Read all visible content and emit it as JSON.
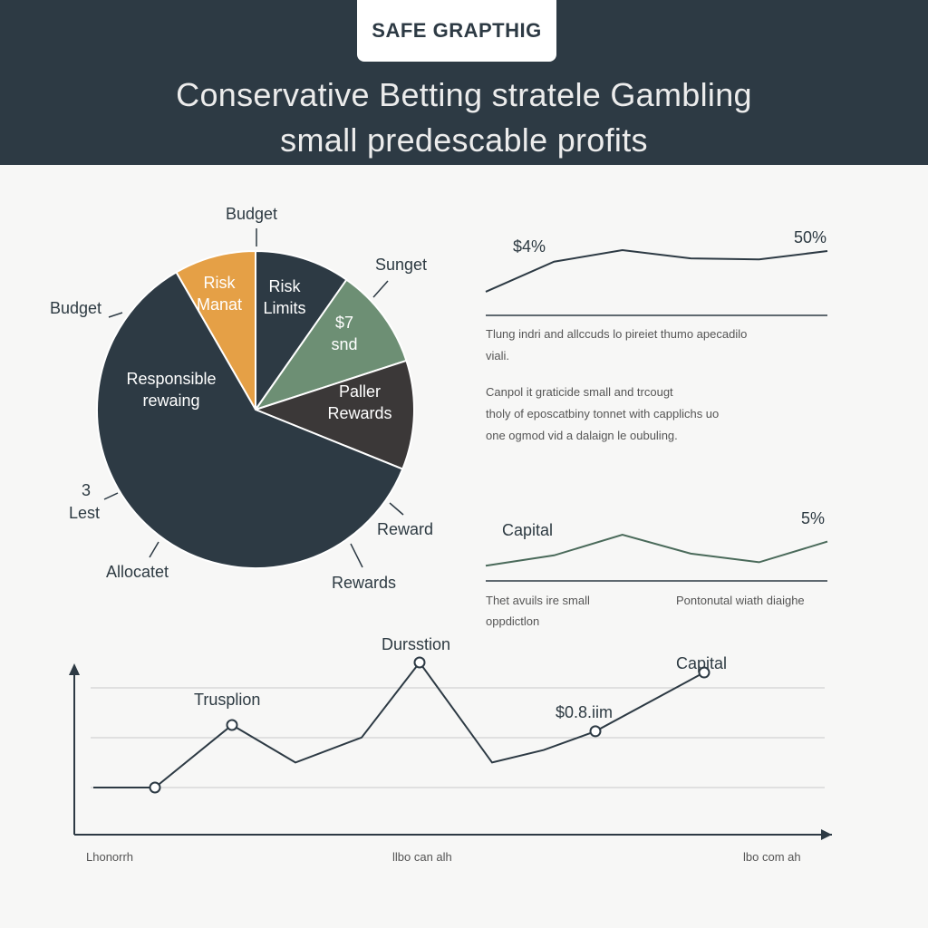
{
  "header": {
    "badge": "SAFE GRAPTHIG",
    "title_line1": "Conservative Betting stratele Gambling",
    "title_line2": "small predescable profits"
  },
  "colors": {
    "header_bg": "#2d3a44",
    "dark_slate": "#2d3a44",
    "orange": "#e5a046",
    "green": "#6d8f74",
    "charcoal": "#3b3838",
    "line": "#2d3a44"
  },
  "chart_data": [
    {
      "type": "pie",
      "slices": [
        {
          "label": "Risk Manat",
          "color": "#e5a046",
          "start_deg": 330,
          "end_deg": 360
        },
        {
          "label": "Risk Limits",
          "color": "#2d3a44",
          "start_deg": 0,
          "end_deg": 35
        },
        {
          "label": "$7 snd",
          "color": "#6d8f74",
          "start_deg": 35,
          "end_deg": 72
        },
        {
          "label": "Paller Rewards",
          "color": "#3b3838",
          "start_deg": 72,
          "end_deg": 112
        },
        {
          "label": "Responsible rewaing",
          "color": "#2d3a44",
          "start_deg": 112,
          "end_deg": 330
        }
      ],
      "annotations": [
        "Budget",
        "Sunget",
        "Budget",
        "3",
        "Lest",
        "Allocatet",
        "Rewards",
        "Reward"
      ]
    },
    {
      "type": "line",
      "values": [
        0.1,
        0.75,
        1.0,
        0.82,
        0.8,
        0.98
      ],
      "annotations": [
        "$4%",
        "50%"
      ],
      "caption_lines": [
        "Tlung indri and allccuds lo pireiet thumo apecadilo",
        "viali.",
        "Canpol   it     graticide   small   and   trcougt",
        "tholy   of   eposcatbiny   tonnet   with   capplichs   uo",
        "one ogmod vid a dalaign le oubuling."
      ]
    },
    {
      "type": "line",
      "title": "Capital",
      "values": [
        0.1,
        0.4,
        1.0,
        0.45,
        0.2,
        0.8
      ],
      "annotations": [
        "5%"
      ],
      "caption_left_lines": [
        "Thet avuils ire small",
        "oppdictlon"
      ],
      "caption_right": "Pontonutal wiath diaighe"
    },
    {
      "type": "line",
      "values": [
        0.0,
        0.0,
        0.5,
        0.2,
        0.4,
        1.0,
        0.2,
        0.3,
        0.45,
        0.92
      ],
      "markers": [
        1,
        2,
        5,
        8,
        9
      ],
      "annotations": [
        "Trusplion",
        "Dursstion",
        "$0.8.iim",
        "Capital"
      ],
      "x_ticks": [
        "Lhonorrh",
        "llbo can alh",
        "lbo com ah"
      ]
    }
  ]
}
